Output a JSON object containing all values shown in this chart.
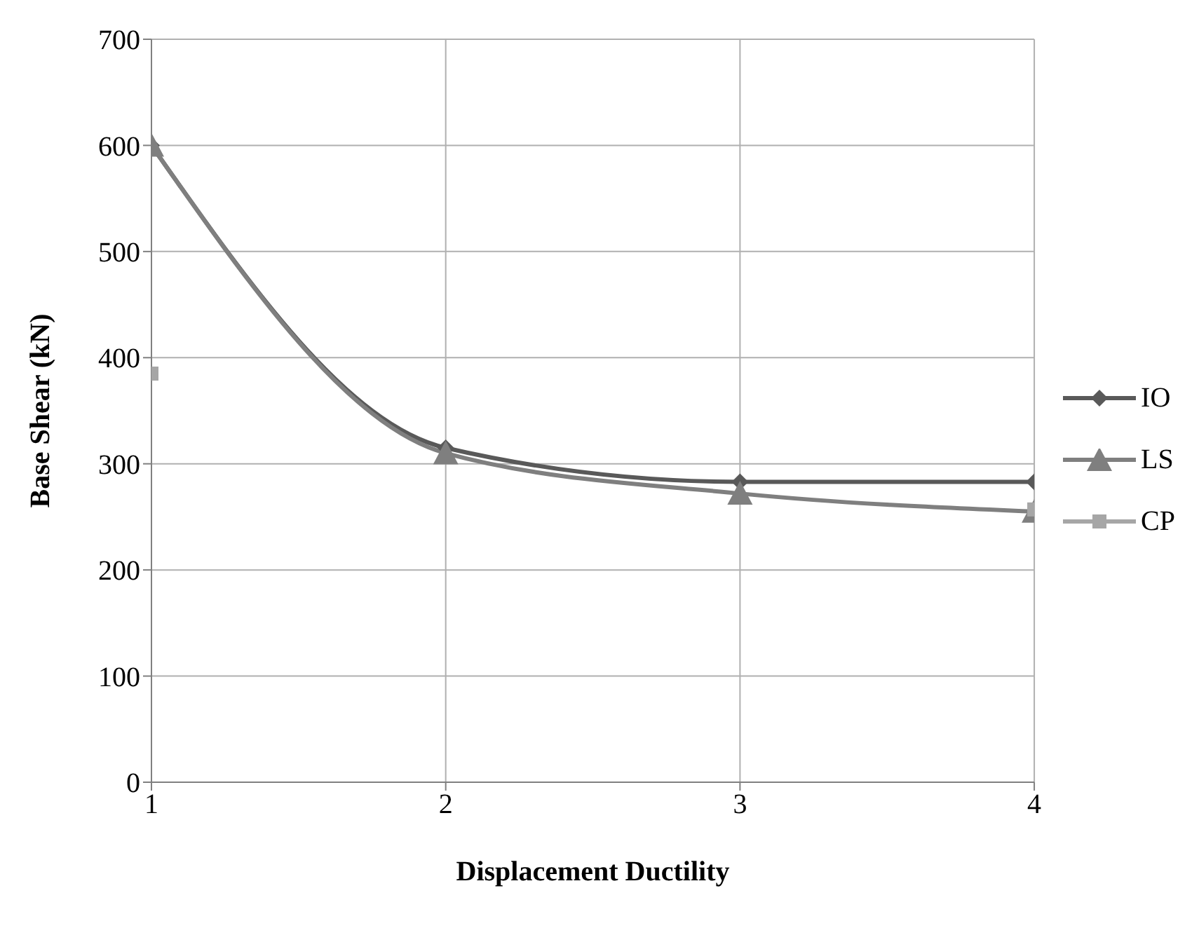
{
  "chart_data": {
    "type": "line",
    "xlabel": "Displacement Ductility",
    "ylabel": "Base Shear (kN)",
    "x": [
      1,
      2,
      3,
      4
    ],
    "xlim": [
      1,
      4
    ],
    "xticks": [
      1,
      2,
      3,
      4
    ],
    "ylim": [
      0,
      700
    ],
    "yticks": [
      0,
      100,
      200,
      300,
      400,
      500,
      600,
      700
    ],
    "grid": true,
    "legend": "right",
    "series": [
      {
        "name": "IO",
        "color": "#595959",
        "marker": "diamond",
        "values": [
          600,
          315,
          283,
          283
        ]
      },
      {
        "name": "LS",
        "color": "#7f7f7f",
        "marker": "triangle",
        "values": [
          600,
          310,
          272,
          255
        ]
      },
      {
        "name": "CP",
        "color": "#a6a6a6",
        "marker": "square",
        "values": [
          385,
          null,
          null,
          257
        ]
      }
    ]
  }
}
